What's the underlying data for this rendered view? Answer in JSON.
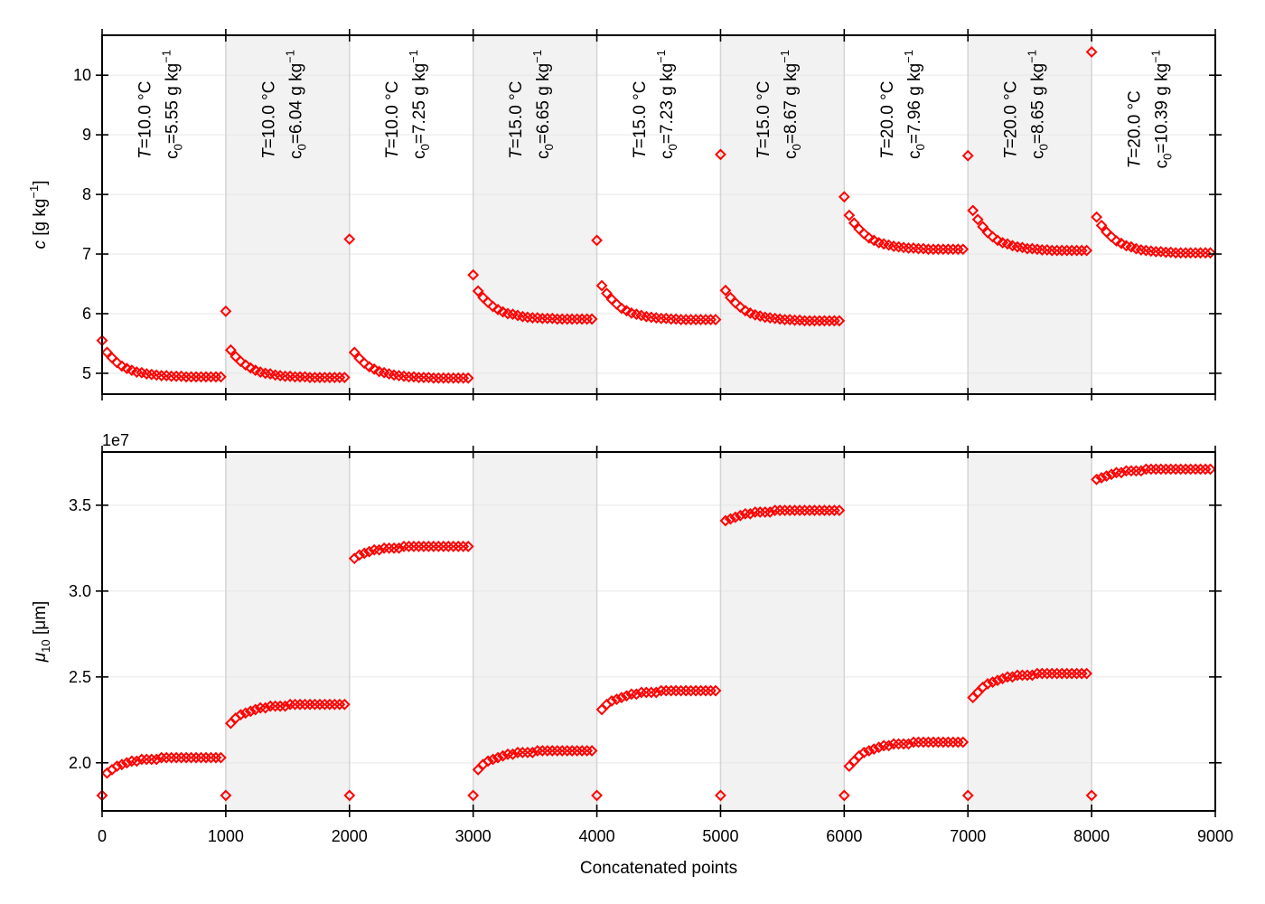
{
  "xlabel": "Concatenated points",
  "x_ticks": [
    0,
    1000,
    2000,
    3000,
    4000,
    5000,
    6000,
    7000,
    8000,
    9000
  ],
  "xlim": [
    0,
    9000
  ],
  "x_step": 40,
  "shaded_segments": [
    1,
    3,
    5,
    7
  ],
  "colors": {
    "marker": "#ff0000",
    "shade": "#f2f2f2",
    "grid": "#e6e6e6",
    "separator": "#d4d4d4"
  },
  "marker": "diamond-open",
  "segment_labels": [
    {
      "T": "=10.0 °C",
      "c0": "=5.55 g kg",
      "exp": "−1"
    },
    {
      "T": "=10.0 °C",
      "c0": "=6.04 g kg",
      "exp": "−1"
    },
    {
      "T": "=10.0 °C",
      "c0": "=7.25 g kg",
      "exp": "−1"
    },
    {
      "T": "=15.0 °C",
      "c0": "=6.65 g kg",
      "exp": "−1"
    },
    {
      "T": "=15.0 °C",
      "c0": "=7.23 g kg",
      "exp": "−1"
    },
    {
      "T": "=15.0 °C",
      "c0": "=8.67 g kg",
      "exp": "−1"
    },
    {
      "T": "=20.0 °C",
      "c0": "=7.96 g kg",
      "exp": "−1"
    },
    {
      "T": "=20.0 °C",
      "c0": "=8.65 g kg",
      "exp": "−1"
    },
    {
      "T": "=20.0 °C",
      "c0": "=10.39 g kg",
      "exp": "−1"
    }
  ],
  "chart_data": [
    {
      "type": "scatter",
      "ylabel": {
        "symbol": "c",
        "unit": " [g kg",
        "exp": "−1",
        "close": "]"
      },
      "ylim": [
        4.65,
        10.67
      ],
      "y_ticks": [
        5,
        6,
        7,
        8,
        9,
        10
      ],
      "grid": true,
      "segments": [
        {
          "x_start": 0,
          "y": [
            5.55,
            5.35,
            5.26,
            5.18,
            5.12,
            5.08,
            5.05,
            5.02,
            5.01,
            4.99,
            4.98,
            4.97,
            4.96,
            4.96,
            4.95,
            4.95,
            4.95,
            4.94,
            4.94,
            4.94,
            4.94,
            4.94,
            4.94,
            4.94,
            4.94
          ]
        },
        {
          "x_start": 1000,
          "y": [
            6.04,
            5.39,
            5.28,
            5.2,
            5.14,
            5.09,
            5.05,
            5.02,
            5.0,
            4.99,
            4.97,
            4.96,
            4.95,
            4.95,
            4.94,
            4.94,
            4.94,
            4.93,
            4.93,
            4.93,
            4.93,
            4.93,
            4.93,
            4.93,
            4.93
          ]
        },
        {
          "x_start": 2000,
          "y": [
            7.25,
            5.35,
            5.25,
            5.17,
            5.11,
            5.07,
            5.03,
            5.01,
            4.99,
            4.97,
            4.96,
            4.95,
            4.94,
            4.94,
            4.93,
            4.93,
            4.93,
            4.92,
            4.92,
            4.92,
            4.92,
            4.92,
            4.92,
            4.92,
            4.92
          ]
        },
        {
          "x_start": 3000,
          "y": [
            6.65,
            6.38,
            6.27,
            6.19,
            6.12,
            6.07,
            6.03,
            6.0,
            5.99,
            5.97,
            5.95,
            5.94,
            5.93,
            5.93,
            5.92,
            5.92,
            5.92,
            5.91,
            5.91,
            5.91,
            5.91,
            5.91,
            5.91,
            5.91,
            5.91
          ]
        },
        {
          "x_start": 4000,
          "y": [
            7.23,
            6.47,
            6.34,
            6.24,
            6.16,
            6.09,
            6.05,
            6.01,
            5.99,
            5.97,
            5.95,
            5.94,
            5.93,
            5.92,
            5.92,
            5.91,
            5.91,
            5.9,
            5.9,
            5.9,
            5.9,
            5.9,
            5.9,
            5.9,
            5.9
          ]
        },
        {
          "x_start": 5000,
          "y": [
            8.67,
            6.39,
            6.27,
            6.18,
            6.11,
            6.05,
            6.01,
            5.98,
            5.96,
            5.94,
            5.93,
            5.92,
            5.91,
            5.9,
            5.9,
            5.89,
            5.89,
            5.88,
            5.88,
            5.88,
            5.88,
            5.88,
            5.88,
            5.88,
            5.88
          ]
        },
        {
          "x_start": 6000,
          "y": [
            7.96,
            7.65,
            7.52,
            7.42,
            7.34,
            7.27,
            7.23,
            7.19,
            7.17,
            7.15,
            7.13,
            7.12,
            7.11,
            7.1,
            7.1,
            7.09,
            7.09,
            7.08,
            7.08,
            7.08,
            7.08,
            7.08,
            7.08,
            7.08,
            7.08
          ]
        },
        {
          "x_start": 7000,
          "y": [
            8.65,
            7.73,
            7.58,
            7.46,
            7.36,
            7.29,
            7.23,
            7.19,
            7.17,
            7.14,
            7.12,
            7.11,
            7.09,
            7.09,
            7.08,
            7.07,
            7.07,
            7.06,
            7.06,
            7.06,
            7.06,
            7.06,
            7.06,
            7.06,
            7.06
          ]
        },
        {
          "x_start": 8000,
          "y": [
            10.39,
            7.62,
            7.48,
            7.37,
            7.29,
            7.22,
            7.18,
            7.14,
            7.12,
            7.09,
            7.07,
            7.06,
            7.05,
            7.04,
            7.04,
            7.03,
            7.03,
            7.02,
            7.02,
            7.02,
            7.02,
            7.02,
            7.02,
            7.02,
            7.02
          ]
        }
      ]
    },
    {
      "type": "scatter",
      "ylabel": {
        "symbol": "μ",
        "sub": "10",
        "unit": " [μm]"
      },
      "offset_text": "1e7",
      "ylim": [
        1.72,
        3.81
      ],
      "y_ticks": [
        2.0,
        2.5,
        3.0,
        3.5
      ],
      "grid": true,
      "segments": [
        {
          "x_start": 0,
          "y": [
            1.81,
            1.94,
            1.96,
            1.98,
            1.99,
            2.0,
            2.01,
            2.01,
            2.02,
            2.02,
            2.02,
            2.02,
            2.03,
            2.03,
            2.03,
            2.03,
            2.03,
            2.03,
            2.03,
            2.03,
            2.03,
            2.03,
            2.03,
            2.03,
            2.03
          ]
        },
        {
          "x_start": 1000,
          "y": [
            1.81,
            2.23,
            2.26,
            2.28,
            2.29,
            2.3,
            2.31,
            2.32,
            2.32,
            2.33,
            2.33,
            2.33,
            2.33,
            2.34,
            2.34,
            2.34,
            2.34,
            2.34,
            2.34,
            2.34,
            2.34,
            2.34,
            2.34,
            2.34,
            2.34
          ]
        },
        {
          "x_start": 2000,
          "y": [
            1.81,
            3.19,
            3.21,
            3.22,
            3.23,
            3.24,
            3.24,
            3.25,
            3.25,
            3.25,
            3.25,
            3.26,
            3.26,
            3.26,
            3.26,
            3.26,
            3.26,
            3.26,
            3.26,
            3.26,
            3.26,
            3.26,
            3.26,
            3.26,
            3.26
          ]
        },
        {
          "x_start": 3000,
          "y": [
            1.81,
            1.96,
            1.99,
            2.01,
            2.02,
            2.03,
            2.04,
            2.05,
            2.05,
            2.06,
            2.06,
            2.06,
            2.06,
            2.07,
            2.07,
            2.07,
            2.07,
            2.07,
            2.07,
            2.07,
            2.07,
            2.07,
            2.07,
            2.07,
            2.07
          ]
        },
        {
          "x_start": 4000,
          "y": [
            1.81,
            2.31,
            2.34,
            2.36,
            2.37,
            2.38,
            2.39,
            2.4,
            2.4,
            2.41,
            2.41,
            2.41,
            2.41,
            2.42,
            2.42,
            2.42,
            2.42,
            2.42,
            2.42,
            2.42,
            2.42,
            2.42,
            2.42,
            2.42,
            2.42
          ]
        },
        {
          "x_start": 5000,
          "y": [
            1.81,
            3.41,
            3.42,
            3.43,
            3.44,
            3.45,
            3.45,
            3.46,
            3.46,
            3.46,
            3.46,
            3.47,
            3.47,
            3.47,
            3.47,
            3.47,
            3.47,
            3.47,
            3.47,
            3.47,
            3.47,
            3.47,
            3.47,
            3.47,
            3.47
          ]
        },
        {
          "x_start": 6000,
          "y": [
            1.81,
            1.98,
            2.01,
            2.04,
            2.06,
            2.07,
            2.08,
            2.09,
            2.1,
            2.1,
            2.11,
            2.11,
            2.11,
            2.11,
            2.12,
            2.12,
            2.12,
            2.12,
            2.12,
            2.12,
            2.12,
            2.12,
            2.12,
            2.12,
            2.12
          ]
        },
        {
          "x_start": 7000,
          "y": [
            1.81,
            2.38,
            2.41,
            2.44,
            2.46,
            2.47,
            2.48,
            2.49,
            2.5,
            2.5,
            2.51,
            2.51,
            2.51,
            2.51,
            2.52,
            2.52,
            2.52,
            2.52,
            2.52,
            2.52,
            2.52,
            2.52,
            2.52,
            2.52,
            2.52
          ]
        },
        {
          "x_start": 8000,
          "y": [
            1.81,
            3.65,
            3.66,
            3.67,
            3.68,
            3.69,
            3.69,
            3.7,
            3.7,
            3.7,
            3.7,
            3.71,
            3.71,
            3.71,
            3.71,
            3.71,
            3.71,
            3.71,
            3.71,
            3.71,
            3.71,
            3.71,
            3.71,
            3.71,
            3.71
          ]
        }
      ]
    }
  ]
}
